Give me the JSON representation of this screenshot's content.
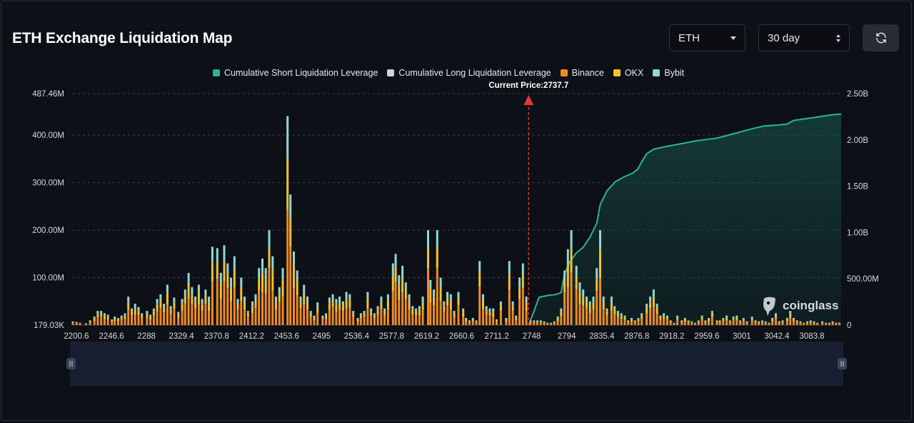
{
  "title": "ETH Exchange Liquidation Map",
  "controls": {
    "coin": "ETH",
    "range": "30 day"
  },
  "legend": [
    {
      "label": "Cumulative Short Liquidation Leverage",
      "color": "#2bb58f"
    },
    {
      "label": "Cumulative Long Liquidation Leverage",
      "color": "#cfd2d6"
    },
    {
      "label": "Binance",
      "color": "#f08a24"
    },
    {
      "label": "OKX",
      "color": "#f5c12e"
    },
    {
      "label": "Bybit",
      "color": "#8fd8d8"
    }
  ],
  "current_price_label": "Current Price:2737.7",
  "watermark": "coinglass",
  "chart_data": {
    "type": "bar",
    "current_price": 2737.7,
    "x_tick_labels": [
      "2200.6",
      "2246.6",
      "2288",
      "2329.4",
      "2370.8",
      "2412.2",
      "2453.6",
      "2495",
      "2536.4",
      "2577.8",
      "2619.2",
      "2660.6",
      "2711.2",
      "2748",
      "2794",
      "2835.4",
      "2876.8",
      "2918.2",
      "2959.6",
      "3001",
      "3042.4",
      "3083.8"
    ],
    "y_left_ticks": [
      "179.03K",
      "100.00M",
      "200.00M",
      "300.00M",
      "400.00M",
      "487.46M"
    ],
    "y_right_ticks": [
      "0",
      "500.00M",
      "1.00B",
      "1.50B",
      "2.00B",
      "2.50B"
    ],
    "ylim_left": [
      0,
      487.46
    ],
    "ylim_right": [
      0,
      2.5
    ],
    "bars": [
      {
        "x": 2200.6,
        "total": 8
      },
      {
        "x": 2205,
        "total": 7
      },
      {
        "x": 2209,
        "total": 5
      },
      {
        "x": 2216,
        "total": 4
      },
      {
        "x": 2221,
        "total": 10
      },
      {
        "x": 2226,
        "total": 18
      },
      {
        "x": 2230,
        "total": 30
      },
      {
        "x": 2234,
        "total": 30
      },
      {
        "x": 2238,
        "total": 25
      },
      {
        "x": 2242,
        "total": 22
      },
      {
        "x": 2246.6,
        "total": 12
      },
      {
        "x": 2250,
        "total": 18
      },
      {
        "x": 2254,
        "total": 15
      },
      {
        "x": 2258,
        "total": 20
      },
      {
        "x": 2262,
        "total": 25
      },
      {
        "x": 2266,
        "total": 60
      },
      {
        "x": 2270,
        "total": 35
      },
      {
        "x": 2274,
        "total": 45
      },
      {
        "x": 2278,
        "total": 38
      },
      {
        "x": 2282,
        "total": 25
      },
      {
        "x": 2288,
        "total": 30
      },
      {
        "x": 2292,
        "total": 22
      },
      {
        "x": 2296,
        "total": 35
      },
      {
        "x": 2300,
        "total": 55
      },
      {
        "x": 2304,
        "total": 65
      },
      {
        "x": 2308,
        "total": 45
      },
      {
        "x": 2312,
        "total": 85
      },
      {
        "x": 2316,
        "total": 40
      },
      {
        "x": 2320,
        "total": 58
      },
      {
        "x": 2325,
        "total": 28
      },
      {
        "x": 2329.4,
        "total": 55
      },
      {
        "x": 2333,
        "total": 75
      },
      {
        "x": 2337,
        "total": 110
      },
      {
        "x": 2341,
        "total": 80
      },
      {
        "x": 2345,
        "total": 60
      },
      {
        "x": 2349,
        "total": 85
      },
      {
        "x": 2353,
        "total": 55
      },
      {
        "x": 2357,
        "total": 75
      },
      {
        "x": 2361,
        "total": 60
      },
      {
        "x": 2365,
        "total": 165
      },
      {
        "x": 2370.8,
        "total": 162
      },
      {
        "x": 2375,
        "total": 110
      },
      {
        "x": 2379,
        "total": 168
      },
      {
        "x": 2383,
        "total": 130
      },
      {
        "x": 2387,
        "total": 100
      },
      {
        "x": 2391,
        "total": 145
      },
      {
        "x": 2395,
        "total": 55
      },
      {
        "x": 2399,
        "total": 100
      },
      {
        "x": 2403,
        "total": 60
      },
      {
        "x": 2407,
        "total": 30
      },
      {
        "x": 2412.2,
        "total": 50
      },
      {
        "x": 2416,
        "total": 65
      },
      {
        "x": 2420,
        "total": 120
      },
      {
        "x": 2424,
        "total": 140
      },
      {
        "x": 2428,
        "total": 120
      },
      {
        "x": 2432,
        "total": 200
      },
      {
        "x": 2436,
        "total": 145
      },
      {
        "x": 2440,
        "total": 60
      },
      {
        "x": 2444,
        "total": 80
      },
      {
        "x": 2448,
        "total": 120
      },
      {
        "x": 2453.6,
        "total": 440
      },
      {
        "x": 2457,
        "total": 275
      },
      {
        "x": 2461,
        "total": 155
      },
      {
        "x": 2465,
        "total": 115
      },
      {
        "x": 2469,
        "total": 60
      },
      {
        "x": 2473,
        "total": 85
      },
      {
        "x": 2477,
        "total": 60
      },
      {
        "x": 2481,
        "total": 30
      },
      {
        "x": 2485,
        "total": 20
      },
      {
        "x": 2489,
        "total": 48
      },
      {
        "x": 2495,
        "total": 20
      },
      {
        "x": 2499,
        "total": 25
      },
      {
        "x": 2503,
        "total": 58
      },
      {
        "x": 2507,
        "total": 65
      },
      {
        "x": 2511,
        "total": 55
      },
      {
        "x": 2515,
        "total": 60
      },
      {
        "x": 2519,
        "total": 50
      },
      {
        "x": 2523,
        "total": 70
      },
      {
        "x": 2527,
        "total": 65
      },
      {
        "x": 2531,
        "total": 30
      },
      {
        "x": 2536.4,
        "total": 15
      },
      {
        "x": 2540,
        "total": 25
      },
      {
        "x": 2544,
        "total": 30
      },
      {
        "x": 2548,
        "total": 70
      },
      {
        "x": 2552,
        "total": 35
      },
      {
        "x": 2556,
        "total": 25
      },
      {
        "x": 2560,
        "total": 40
      },
      {
        "x": 2564,
        "total": 60
      },
      {
        "x": 2568,
        "total": 35
      },
      {
        "x": 2572,
        "total": 65
      },
      {
        "x": 2577.8,
        "total": 130
      },
      {
        "x": 2581,
        "total": 150
      },
      {
        "x": 2585,
        "total": 105
      },
      {
        "x": 2589,
        "total": 125
      },
      {
        "x": 2593,
        "total": 90
      },
      {
        "x": 2597,
        "total": 65
      },
      {
        "x": 2601,
        "total": 40
      },
      {
        "x": 2605,
        "total": 35
      },
      {
        "x": 2609,
        "total": 40
      },
      {
        "x": 2613,
        "total": 60
      },
      {
        "x": 2619.2,
        "total": 200
      },
      {
        "x": 2622,
        "total": 95
      },
      {
        "x": 2626,
        "total": 75
      },
      {
        "x": 2630,
        "total": 200
      },
      {
        "x": 2634,
        "total": 100
      },
      {
        "x": 2638,
        "total": 50
      },
      {
        "x": 2642,
        "total": 70
      },
      {
        "x": 2646,
        "total": 65
      },
      {
        "x": 2650,
        "total": 30
      },
      {
        "x": 2655,
        "total": 70
      },
      {
        "x": 2660.6,
        "total": 35
      },
      {
        "x": 2664,
        "total": 15
      },
      {
        "x": 2668,
        "total": 10
      },
      {
        "x": 2672,
        "total": 15
      },
      {
        "x": 2676,
        "total": 10
      },
      {
        "x": 2680,
        "total": 135
      },
      {
        "x": 2684,
        "total": 65
      },
      {
        "x": 2688,
        "total": 40
      },
      {
        "x": 2692,
        "total": 35
      },
      {
        "x": 2696,
        "total": 35
      },
      {
        "x": 2700,
        "total": 12
      },
      {
        "x": 2705,
        "total": 50
      },
      {
        "x": 2711.2,
        "total": 15
      },
      {
        "x": 2715,
        "total": 135
      },
      {
        "x": 2719,
        "total": 50
      },
      {
        "x": 2723,
        "total": 20
      },
      {
        "x": 2727,
        "total": 100
      },
      {
        "x": 2731,
        "total": 130
      },
      {
        "x": 2735,
        "total": 60
      },
      {
        "x": 2740,
        "total": 10
      },
      {
        "x": 2744,
        "total": 10
      },
      {
        "x": 2748,
        "total": 10
      },
      {
        "x": 2752,
        "total": 10
      },
      {
        "x": 2756,
        "total": 8
      },
      {
        "x": 2760,
        "total": 5
      },
      {
        "x": 2764,
        "total": 5
      },
      {
        "x": 2768,
        "total": 8
      },
      {
        "x": 2772,
        "total": 18
      },
      {
        "x": 2776,
        "total": 35
      },
      {
        "x": 2780,
        "total": 115
      },
      {
        "x": 2784,
        "total": 160
      },
      {
        "x": 2788,
        "total": 200
      },
      {
        "x": 2794,
        "total": 125
      },
      {
        "x": 2798,
        "total": 90
      },
      {
        "x": 2802,
        "total": 75
      },
      {
        "x": 2806,
        "total": 60
      },
      {
        "x": 2810,
        "total": 50
      },
      {
        "x": 2814,
        "total": 60
      },
      {
        "x": 2818,
        "total": 120
      },
      {
        "x": 2822,
        "total": 200
      },
      {
        "x": 2826,
        "total": 60
      },
      {
        "x": 2830,
        "total": 35
      },
      {
        "x": 2835.4,
        "total": 60
      },
      {
        "x": 2839,
        "total": 40
      },
      {
        "x": 2843,
        "total": 30
      },
      {
        "x": 2847,
        "total": 25
      },
      {
        "x": 2851,
        "total": 20
      },
      {
        "x": 2855,
        "total": 10
      },
      {
        "x": 2859,
        "total": 15
      },
      {
        "x": 2863,
        "total": 10
      },
      {
        "x": 2867,
        "total": 15
      },
      {
        "x": 2871,
        "total": 25
      },
      {
        "x": 2876.8,
        "total": 45
      },
      {
        "x": 2881,
        "total": 60
      },
      {
        "x": 2885,
        "total": 75
      },
      {
        "x": 2889,
        "total": 45
      },
      {
        "x": 2893,
        "total": 20
      },
      {
        "x": 2897,
        "total": 25
      },
      {
        "x": 2901,
        "total": 20
      },
      {
        "x": 2905,
        "total": 10
      },
      {
        "x": 2909,
        "total": 5
      },
      {
        "x": 2913,
        "total": 20
      },
      {
        "x": 2918.2,
        "total": 10
      },
      {
        "x": 2922,
        "total": 15
      },
      {
        "x": 2926,
        "total": 10
      },
      {
        "x": 2930,
        "total": 8
      },
      {
        "x": 2934,
        "total": 5
      },
      {
        "x": 2938,
        "total": 10
      },
      {
        "x": 2942,
        "total": 20
      },
      {
        "x": 2946,
        "total": 10
      },
      {
        "x": 2950,
        "total": 15
      },
      {
        "x": 2954,
        "total": 30
      },
      {
        "x": 2959.6,
        "total": 10
      },
      {
        "x": 2963,
        "total": 10
      },
      {
        "x": 2967,
        "total": 15
      },
      {
        "x": 2971,
        "total": 20
      },
      {
        "x": 2975,
        "total": 10
      },
      {
        "x": 2979,
        "total": 18
      },
      {
        "x": 2983,
        "total": 20
      },
      {
        "x": 2987,
        "total": 10
      },
      {
        "x": 2991,
        "total": 15
      },
      {
        "x": 2995,
        "total": 8
      },
      {
        "x": 3001,
        "total": 18
      },
      {
        "x": 3005,
        "total": 10
      },
      {
        "x": 3009,
        "total": 8
      },
      {
        "x": 3013,
        "total": 10
      },
      {
        "x": 3017,
        "total": 8
      },
      {
        "x": 3021,
        "total": 5
      },
      {
        "x": 3025,
        "total": 15
      },
      {
        "x": 3029,
        "total": 25
      },
      {
        "x": 3033,
        "total": 8
      },
      {
        "x": 3037,
        "total": 10
      },
      {
        "x": 3042.4,
        "total": 15
      },
      {
        "x": 3046,
        "total": 30
      },
      {
        "x": 3050,
        "total": 15
      },
      {
        "x": 3054,
        "total": 10
      },
      {
        "x": 3058,
        "total": 8
      },
      {
        "x": 3062,
        "total": 5
      },
      {
        "x": 3066,
        "total": 8
      },
      {
        "x": 3070,
        "total": 10
      },
      {
        "x": 3074,
        "total": 8
      },
      {
        "x": 3078,
        "total": 5
      },
      {
        "x": 3083.8,
        "total": 8
      },
      {
        "x": 3088,
        "total": 5
      },
      {
        "x": 3092,
        "total": 5
      },
      {
        "x": 3096,
        "total": 8
      },
      {
        "x": 3100,
        "total": 5
      },
      {
        "x": 3104,
        "total": 5
      }
    ],
    "cumulative_short": [
      {
        "x": 2737.7,
        "y": 0.0
      },
      {
        "x": 2744,
        "y": 0.15
      },
      {
        "x": 2750,
        "y": 0.3
      },
      {
        "x": 2760,
        "y": 0.32
      },
      {
        "x": 2770,
        "y": 0.33
      },
      {
        "x": 2776,
        "y": 0.35
      },
      {
        "x": 2780,
        "y": 0.55
      },
      {
        "x": 2786,
        "y": 0.68
      },
      {
        "x": 2794,
        "y": 0.78
      },
      {
        "x": 2802,
        "y": 0.84
      },
      {
        "x": 2810,
        "y": 0.95
      },
      {
        "x": 2818,
        "y": 1.1
      },
      {
        "x": 2822,
        "y": 1.3
      },
      {
        "x": 2830,
        "y": 1.45
      },
      {
        "x": 2840,
        "y": 1.55
      },
      {
        "x": 2850,
        "y": 1.6
      },
      {
        "x": 2860,
        "y": 1.64
      },
      {
        "x": 2866,
        "y": 1.68
      },
      {
        "x": 2872,
        "y": 1.78
      },
      {
        "x": 2876.8,
        "y": 1.85
      },
      {
        "x": 2885,
        "y": 1.9
      },
      {
        "x": 2900,
        "y": 1.93
      },
      {
        "x": 2918,
        "y": 1.96
      },
      {
        "x": 2935,
        "y": 1.99
      },
      {
        "x": 2960,
        "y": 2.02
      },
      {
        "x": 2985,
        "y": 2.08
      },
      {
        "x": 3001,
        "y": 2.12
      },
      {
        "x": 3015,
        "y": 2.15
      },
      {
        "x": 3030,
        "y": 2.16
      },
      {
        "x": 3042,
        "y": 2.17
      },
      {
        "x": 3050,
        "y": 2.21
      },
      {
        "x": 3065,
        "y": 2.23
      },
      {
        "x": 3080,
        "y": 2.25
      },
      {
        "x": 3095,
        "y": 2.27
      },
      {
        "x": 3106,
        "y": 2.28
      }
    ]
  }
}
